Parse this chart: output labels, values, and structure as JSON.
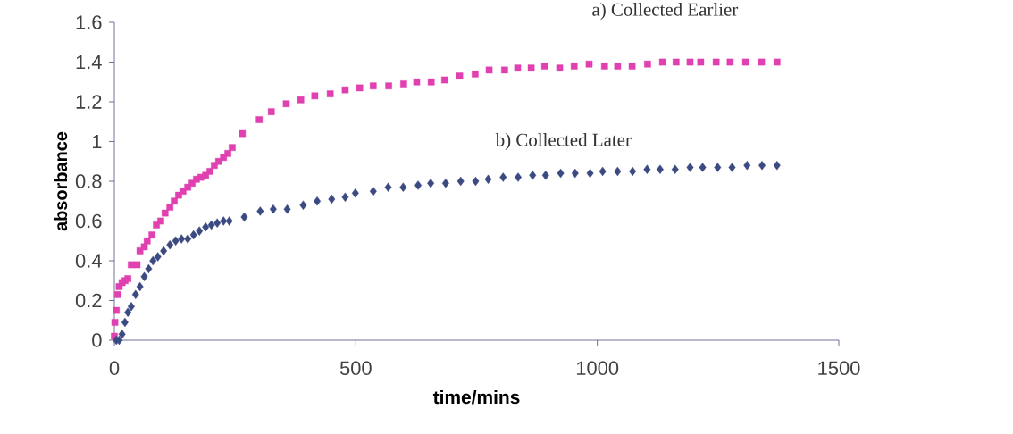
{
  "chart_data": {
    "type": "scatter",
    "xlabel": "time/mins",
    "ylabel": "absorbance",
    "xlim": [
      0,
      1500
    ],
    "ylim": [
      0,
      1.6
    ],
    "xticks": [
      0,
      500,
      1000,
      1500
    ],
    "yticks": [
      0,
      0.2,
      0.4,
      0.6,
      0.8,
      1,
      1.2,
      1.4,
      1.6
    ],
    "grid": false,
    "legend": false,
    "series": [
      {
        "name": "a) Collected Earlier",
        "color": "#e040b0",
        "marker": "square",
        "x": [
          0,
          1,
          4,
          7,
          10,
          16,
          22,
          28,
          35,
          47,
          53,
          62,
          68,
          78,
          87,
          96,
          105,
          115,
          124,
          133,
          142,
          152,
          161,
          170,
          179,
          189,
          198,
          207,
          216,
          226,
          235,
          244,
          265,
          300,
          325,
          356,
          386,
          415,
          447,
          478,
          508,
          536,
          568,
          599,
          626,
          656,
          684,
          715,
          747,
          776,
          808,
          835,
          863,
          891,
          922,
          952,
          983,
          1015,
          1042,
          1072,
          1104,
          1135,
          1163,
          1192,
          1214,
          1246,
          1275,
          1307,
          1340,
          1372
        ],
        "values": [
          0.02,
          0.09,
          0.15,
          0.23,
          0.27,
          0.29,
          0.3,
          0.31,
          0.38,
          0.38,
          0.45,
          0.47,
          0.5,
          0.53,
          0.58,
          0.6,
          0.64,
          0.67,
          0.7,
          0.73,
          0.75,
          0.77,
          0.79,
          0.81,
          0.82,
          0.83,
          0.85,
          0.88,
          0.9,
          0.92,
          0.94,
          0.97,
          1.04,
          1.11,
          1.15,
          1.19,
          1.21,
          1.23,
          1.24,
          1.26,
          1.27,
          1.28,
          1.28,
          1.29,
          1.3,
          1.3,
          1.31,
          1.33,
          1.34,
          1.36,
          1.36,
          1.37,
          1.37,
          1.38,
          1.37,
          1.38,
          1.39,
          1.38,
          1.38,
          1.38,
          1.39,
          1.4,
          1.4,
          1.4,
          1.4,
          1.4,
          1.4,
          1.4,
          1.4,
          1.4
        ]
      },
      {
        "name": "b) Collected Later",
        "color": "#3c4a82",
        "marker": "diamond",
        "x": [
          4,
          10,
          16,
          22,
          28,
          35,
          44,
          53,
          62,
          71,
          80,
          90,
          102,
          115,
          127,
          139,
          152,
          164,
          176,
          189,
          201,
          213,
          226,
          238,
          269,
          302,
          329,
          358,
          391,
          420,
          450,
          478,
          499,
          536,
          567,
          598,
          629,
          655,
          686,
          717,
          748,
          774,
          805,
          836,
          866,
          893,
          924,
          954,
          985,
          1011,
          1042,
          1073,
          1103,
          1130,
          1161,
          1192,
          1218,
          1249,
          1279,
          1310,
          1341,
          1372
        ],
        "values": [
          0,
          0,
          0.03,
          0.09,
          0.14,
          0.17,
          0.23,
          0.27,
          0.32,
          0.36,
          0.4,
          0.42,
          0.45,
          0.48,
          0.5,
          0.51,
          0.51,
          0.53,
          0.55,
          0.57,
          0.58,
          0.59,
          0.6,
          0.6,
          0.62,
          0.65,
          0.66,
          0.66,
          0.68,
          0.7,
          0.71,
          0.72,
          0.74,
          0.75,
          0.77,
          0.77,
          0.78,
          0.79,
          0.79,
          0.8,
          0.8,
          0.81,
          0.82,
          0.82,
          0.83,
          0.83,
          0.84,
          0.84,
          0.84,
          0.85,
          0.85,
          0.85,
          0.86,
          0.86,
          0.86,
          0.87,
          0.87,
          0.87,
          0.87,
          0.88,
          0.88,
          0.88
        ]
      }
    ]
  }
}
